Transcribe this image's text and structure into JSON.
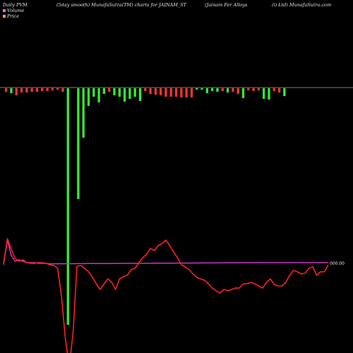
{
  "header": {
    "left": "Daily PVM",
    "middle": "(5day smooth) MunafaSutra(TM) charts for JAINAM_ST",
    "company": "(Jainam Fer Alloys",
    "right": "(i) Ltd) MunafaSutra.com"
  },
  "legend": [
    {
      "label": "Volume",
      "color": "#ff66ff"
    },
    {
      "label": "Price",
      "color": "#ff9966"
    }
  ],
  "colors": {
    "up": "#33ee33",
    "down": "#ff3333",
    "price_line": "#ff2020",
    "avg_line": "#cc33cc",
    "baseline": "#aaaaaa"
  },
  "end_label": "000.00",
  "chart_data": {
    "type": "bar",
    "title": "",
    "volume_bars": [
      {
        "v": 5,
        "c": "down"
      },
      {
        "v": 7,
        "c": "up"
      },
      {
        "v": 10,
        "c": "down"
      },
      {
        "v": 6,
        "c": "down"
      },
      {
        "v": 6,
        "c": "down"
      },
      {
        "v": 5,
        "c": "down"
      },
      {
        "v": 5,
        "c": "down"
      },
      {
        "v": 4,
        "c": "down"
      },
      {
        "v": 4,
        "c": "down"
      },
      {
        "v": 3,
        "c": "down"
      },
      {
        "v": 2,
        "c": "down"
      },
      {
        "v": 5,
        "c": "down"
      },
      {
        "v": 335,
        "c": "up"
      },
      {
        "v": 0,
        "c": "up"
      },
      {
        "v": 157,
        "c": "up"
      },
      {
        "v": 70,
        "c": "up"
      },
      {
        "v": 25,
        "c": "up"
      },
      {
        "v": 12,
        "c": "up"
      },
      {
        "v": 20,
        "c": "up"
      },
      {
        "v": 8,
        "c": "up"
      },
      {
        "v": 5,
        "c": "down"
      },
      {
        "v": 10,
        "c": "up"
      },
      {
        "v": 12,
        "c": "up"
      },
      {
        "v": 19,
        "c": "up"
      },
      {
        "v": 15,
        "c": "up"
      },
      {
        "v": 12,
        "c": "up"
      },
      {
        "v": 18,
        "c": "up"
      },
      {
        "v": 4,
        "c": "down"
      },
      {
        "v": 8,
        "c": "down"
      },
      {
        "v": 9,
        "c": "down"
      },
      {
        "v": 10,
        "c": "down"
      },
      {
        "v": 12,
        "c": "down"
      },
      {
        "v": 12,
        "c": "down"
      },
      {
        "v": 12,
        "c": "down"
      },
      {
        "v": 13,
        "c": "down"
      },
      {
        "v": 13,
        "c": "down"
      },
      {
        "v": 13,
        "c": "down"
      },
      {
        "v": 2,
        "c": "up"
      },
      {
        "v": 2,
        "c": "up"
      },
      {
        "v": 7,
        "c": "up"
      },
      {
        "v": 4,
        "c": "up"
      },
      {
        "v": 5,
        "c": "up"
      },
      {
        "v": 4,
        "c": "down"
      },
      {
        "v": 6,
        "c": "up"
      },
      {
        "v": 5,
        "c": "down"
      },
      {
        "v": 8,
        "c": "down"
      },
      {
        "v": 14,
        "c": "up"
      },
      {
        "v": 3,
        "c": "down"
      },
      {
        "v": 4,
        "c": "down"
      },
      {
        "v": 3,
        "c": "down"
      },
      {
        "v": 15,
        "c": "up"
      },
      {
        "v": 16,
        "c": "up"
      },
      {
        "v": 4,
        "c": "down"
      },
      {
        "v": 6,
        "c": "down"
      },
      {
        "v": 11,
        "c": "up"
      }
    ],
    "price": [
      373,
      338,
      353,
      366,
      370,
      368,
      372,
      373,
      373,
      372,
      372,
      373,
      375,
      376,
      380,
      420,
      480,
      520,
      470,
      377,
      376,
      380,
      385,
      393,
      402,
      410,
      402,
      395,
      400,
      410,
      395,
      392,
      390,
      382,
      380,
      372,
      365,
      360,
      352,
      355,
      348,
      345,
      340,
      348,
      357,
      365,
      375,
      378,
      382,
      388,
      393,
      395,
      397,
      402,
      408,
      412,
      415,
      410,
      412,
      410,
      408,
      408,
      402,
      402,
      400,
      402,
      405,
      408,
      400,
      395,
      403,
      405,
      405,
      400,
      390,
      383,
      385,
      388,
      387,
      380,
      378,
      390,
      385,
      385,
      375
    ]
  }
}
